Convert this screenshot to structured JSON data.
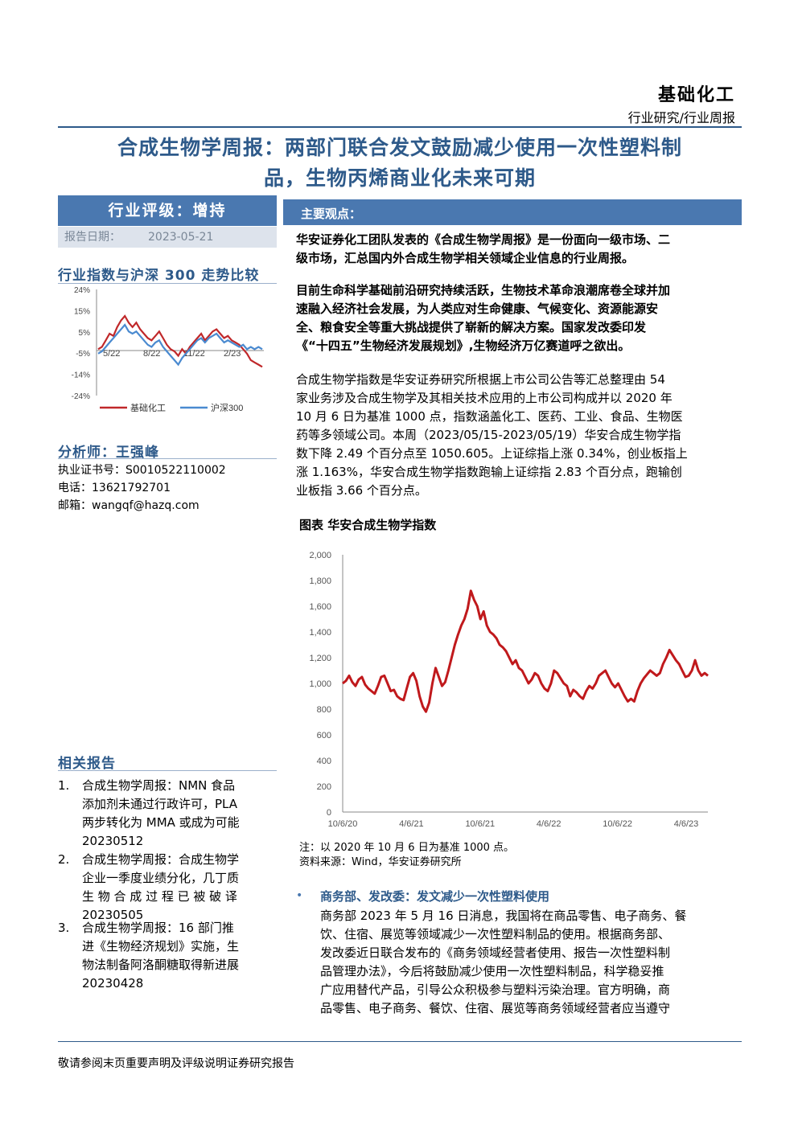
{
  "header": {
    "sector": "基础化工",
    "subsector": "行业研究/行业周报",
    "title_line1": "合成生物学周报：两部门联合发文鼓励减少使用一次性塑料制",
    "title_line2": "品，生物丙烯商业化未来可期"
  },
  "sidebar": {
    "rating_label": "行业评级：增持",
    "date_label": "报告日期：",
    "date_value": "2023-05-21",
    "index_compare_title": "行业指数与沪深 300 走势比较",
    "analyst_title": "分析师：王强峰",
    "license_label": "执业证书号：S0010522110002",
    "phone_label": "电话：13621792701",
    "email_label": "邮箱：wangqf@hazq.com",
    "related_title": "相关报告",
    "related_reports": [
      {
        "num": "1.",
        "line1": "合成生物学周报：NMN 食品",
        "line2": "添加剂未通过行政许可，PLA",
        "line3": "两步转化为 MMA 或成为可能",
        "line4": "20230512"
      },
      {
        "num": "2.",
        "line1": "合成生物学周报：合成生物学",
        "line2": "企业一季度业绩分化，几丁质",
        "line3": "生 物 合 成 过 程 已 被 破 译",
        "line4": "20230505"
      },
      {
        "num": "3.",
        "line1": "合成生物学周报：16 部门推",
        "line2": "进《生物经济规划》实施，生",
        "line3": "物法制备阿洛酮糖取得新进展",
        "line4": "20230428"
      }
    ]
  },
  "main": {
    "key_points_label": "主要观点：",
    "p1_l1": "华安证券化工团队发表的《合成生物学周报》是一份面向一级市场、二",
    "p1_l2": "级市场，汇总国内外合成生物学相关领域企业信息的行业周报。",
    "p2_l1": "目前生命科学基础前沿研究持续活跃，生物技术革命浪潮席卷全球并加",
    "p2_l2": "速融入经济社会发展，为人类应对生命健康、气候变化、资源能源安",
    "p2_l3": "全、粮食安全等重大挑战提供了崭新的解决方案。国家发改委印发",
    "p2_l4": "《“十四五”生物经济发展规划》,生物经济万亿赛道呼之欲出。",
    "p3_l1": "合成生物学指数是华安证券研究所根据上市公司公告等汇总整理由 54",
    "p3_l2": "家业务涉及合成生物学及其相关技术应用的上市公司构成并以 2020 年",
    "p3_l3": "10 月 6 日为基准 1000 点，指数涵盖化工、医药、工业、食品、生物医",
    "p3_l4": "药等多领域公司。本周（2023/05/15-2023/05/19）华安合成生物学指",
    "p3_l5": "数下降 2.49 个百分点至 1050.605。上证综指上涨 0.34%，创业板指上",
    "p3_l6": "涨 1.163%，华安合成生物学指数跑输上证综指 2.83 个百分点，跑输创",
    "p3_l7": "业板指 3.66 个百分点。",
    "figure_title": "图表 华安合成生物学指数",
    "note": "注：以 2020 年 10 月 6 日为基准 1000 点。",
    "source": "资料来源：Wind，华安证券研究所",
    "bullet_title": "商务部、发改委：发文减少一次性塑料使用",
    "b_l1": "商务部 2023 年 5 月 16 日消息，我国将在商品零售、电子商务、餐",
    "b_l2": "饮、住宿、展览等领域减少一次性塑料制品的使用。根据商务部、",
    "b_l3": "发改委近日联合发布的《商务领域经营者使用、报告一次性塑料制",
    "b_l4": "品管理办法》，今后将鼓励减少使用一次性塑料制品，科学稳妥推",
    "b_l5": "广应用替代产品，引导公众积极参与塑料污染治理。官方明确，商",
    "b_l6": "品零售、电子商务、餐饮、住宿、展览等商务领域经营者应当遵守"
  },
  "footer": {
    "disclaimer": "敬请参阅末页重要声明及评级说明证券研究报告"
  },
  "chart_data": [
    {
      "type": "line",
      "title": "行业指数与沪深 300 走势比较",
      "x_ticks": [
        "5/22",
        "8/22",
        "11/22",
        "2/23"
      ],
      "y_ticks": [
        "24%",
        "15%",
        "5%",
        "-5%",
        "-14%",
        "-24%"
      ],
      "ylim": [
        -24,
        24
      ],
      "legend_placement": "bottom",
      "colors": {
        "基础化工": "#c0282a",
        "沪深300": "#4a8ad0"
      },
      "series": [
        {
          "name": "基础化工",
          "values": [
            -3,
            -2,
            1,
            4,
            3,
            7,
            10,
            12,
            9,
            7,
            9,
            6,
            4,
            2,
            1,
            3,
            5,
            2,
            -1,
            -3,
            -4,
            -6,
            -3,
            -5,
            -2,
            0,
            2,
            4,
            1,
            3,
            5,
            6,
            4,
            2,
            3,
            1,
            0,
            -1,
            -3,
            -5,
            -8,
            -9,
            -10,
            -11
          ]
        },
        {
          "name": "沪深300",
          "values": [
            -5,
            -4,
            -2,
            0,
            2,
            4,
            6,
            8,
            5,
            4,
            5,
            3,
            1,
            -1,
            -2,
            0,
            1,
            -2,
            -4,
            -6,
            -8,
            -10,
            -7,
            -5,
            -3,
            -1,
            1,
            2,
            0,
            2,
            3,
            4,
            2,
            0,
            1,
            0,
            -1,
            -2,
            -1,
            -3,
            -2,
            -3,
            -2,
            -3
          ]
        }
      ]
    },
    {
      "type": "line",
      "title": "图表 华安合成生物学指数",
      "x_ticks": [
        "10/6/20",
        "4/6/21",
        "10/6/21",
        "4/6/22",
        "10/6/22",
        "4/6/23"
      ],
      "y_ticks": [
        "0",
        "200",
        "400",
        "600",
        "800",
        "1,000",
        "1,200",
        "1,400",
        "1,600",
        "1,800",
        "2,000"
      ],
      "ylim": [
        0,
        2000
      ],
      "grid": false,
      "colors": {
        "华安合成生物学指数": "#c0191c"
      },
      "series": [
        {
          "name": "华安合成生物学指数",
          "values": [
            1000,
            1020,
            1060,
            1010,
            980,
            1030,
            1050,
            990,
            960,
            940,
            920,
            980,
            1050,
            1060,
            1000,
            940,
            950,
            900,
            880,
            870,
            960,
            1050,
            1080,
            1020,
            900,
            820,
            780,
            850,
            1000,
            1120,
            1050,
            980,
            1010,
            1100,
            1200,
            1300,
            1380,
            1450,
            1500,
            1580,
            1720,
            1650,
            1600,
            1500,
            1560,
            1450,
            1400,
            1380,
            1350,
            1300,
            1280,
            1250,
            1200,
            1150,
            1180,
            1120,
            1100,
            1050,
            1000,
            1030,
            1080,
            1060,
            1000,
            960,
            940,
            1000,
            1100,
            1080,
            1040,
            1000,
            980,
            900,
            950,
            930,
            900,
            880,
            940,
            980,
            960,
            1000,
            1060,
            1080,
            1100,
            1050,
            1000,
            970,
            1000,
            950,
            900,
            860,
            880,
            860,
            940,
            1000,
            1040,
            1070,
            1100,
            1080,
            1060,
            1080,
            1150,
            1200,
            1260,
            1220,
            1180,
            1150,
            1100,
            1050,
            1060,
            1100,
            1180,
            1100,
            1060,
            1080,
            1060
          ]
        }
      ]
    }
  ]
}
